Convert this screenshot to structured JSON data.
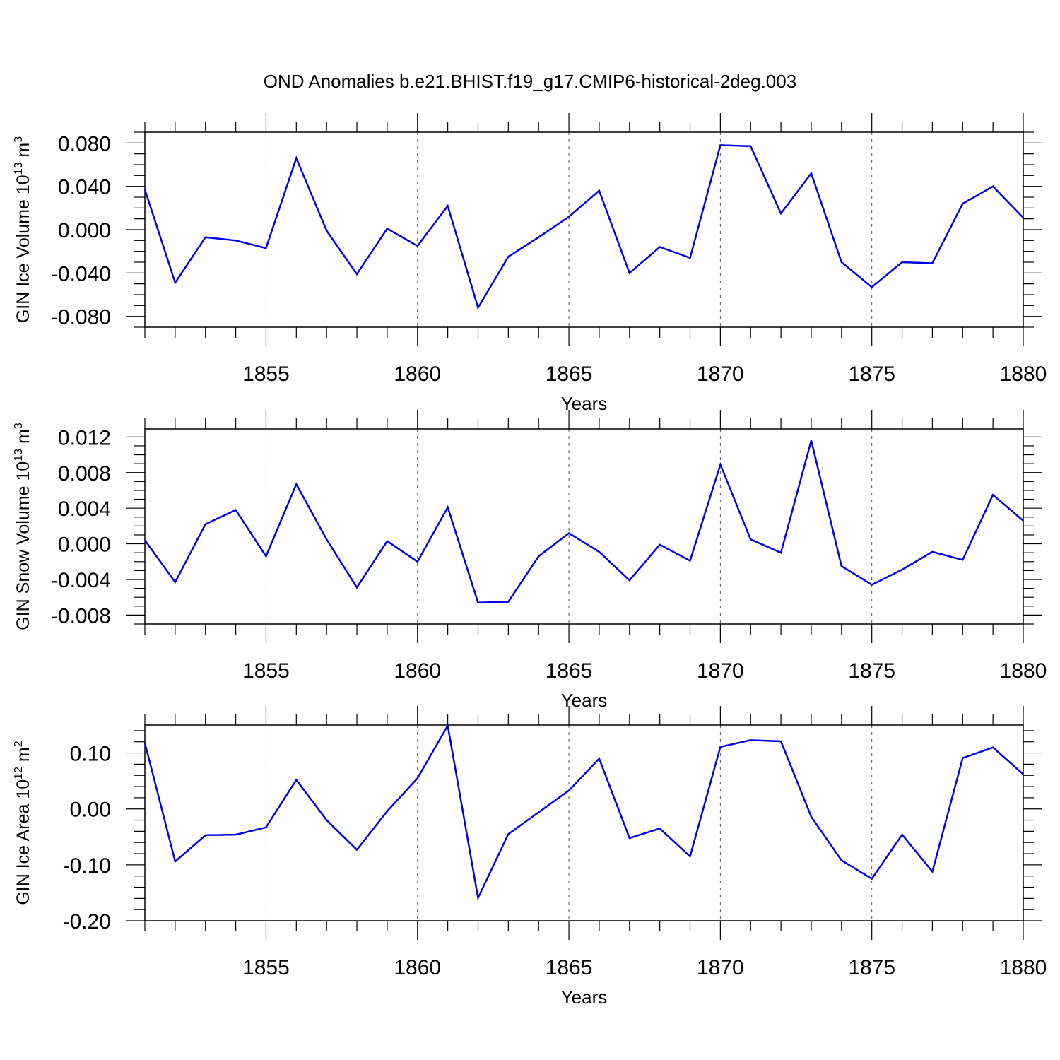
{
  "figure": {
    "title": "OND Anomalies b.e21.BHIST.f19_g17.CMIP6-historical-2deg.003"
  },
  "chart_data": [
    {
      "type": "line",
      "title": "",
      "xlabel": "Years",
      "ylabel": {
        "main": "GIN Ice Volume 10",
        "exp": "13",
        "unit": " m",
        "unit_exp": "3"
      },
      "xlim": [
        1851,
        1880
      ],
      "ylim": [
        -0.09,
        0.09
      ],
      "xticks": [
        1855,
        1860,
        1865,
        1870,
        1875,
        1880
      ],
      "xtick_labels": [
        "1855",
        "1860",
        "1865",
        "1870",
        "1875",
        "1880"
      ],
      "yticks": [
        -0.08,
        -0.04,
        0.0,
        0.04,
        0.08
      ],
      "ytick_labels": [
        "-0.080",
        "-0.040",
        "0.000",
        "0.040",
        "0.080"
      ],
      "ygrid_minor": 0.01,
      "vgrid": [
        1855,
        1860,
        1865,
        1870,
        1875
      ],
      "line_color": "#0000ee",
      "x": [
        1851,
        1852,
        1853,
        1854,
        1855,
        1856,
        1857,
        1858,
        1859,
        1860,
        1861,
        1862,
        1863,
        1864,
        1865,
        1866,
        1867,
        1868,
        1869,
        1870,
        1871,
        1872,
        1873,
        1874,
        1875,
        1876,
        1877,
        1878,
        1879,
        1880
      ],
      "values": [
        0.037,
        -0.049,
        -0.007,
        -0.01,
        -0.017,
        0.066,
        -0.001,
        -0.041,
        0.001,
        -0.015,
        0.022,
        -0.072,
        -0.025,
        -0.007,
        0.012,
        0.036,
        -0.04,
        -0.016,
        -0.026,
        0.078,
        0.077,
        0.015,
        0.052,
        -0.03,
        -0.053,
        -0.03,
        -0.031,
        0.024,
        0.04,
        0.011
      ]
    },
    {
      "type": "line",
      "title": "",
      "xlabel": "Years",
      "ylabel": {
        "main": "GIN Snow Volume 10",
        "exp": "13",
        "unit": " m",
        "unit_exp": "3"
      },
      "xlim": [
        1851,
        1880
      ],
      "ylim": [
        -0.009,
        0.0129
      ],
      "xticks": [
        1855,
        1860,
        1865,
        1870,
        1875,
        1880
      ],
      "xtick_labels": [
        "1855",
        "1860",
        "1865",
        "1870",
        "1875",
        "1880"
      ],
      "yticks": [
        -0.008,
        -0.004,
        0.0,
        0.004,
        0.008,
        0.012
      ],
      "ytick_labels": [
        "-0.008",
        "-0.004",
        "0.000",
        "0.004",
        "0.008",
        "0.012"
      ],
      "ygrid_minor": 0.001,
      "vgrid": [
        1855,
        1860,
        1865,
        1870,
        1875
      ],
      "line_color": "#0000ee",
      "x": [
        1851,
        1852,
        1853,
        1854,
        1855,
        1856,
        1857,
        1858,
        1859,
        1860,
        1861,
        1862,
        1863,
        1864,
        1865,
        1866,
        1867,
        1868,
        1869,
        1870,
        1871,
        1872,
        1873,
        1874,
        1875,
        1876,
        1877,
        1878,
        1879,
        1880
      ],
      "values": [
        0.0004,
        -0.0043,
        0.0022,
        0.0038,
        -0.0014,
        0.0067,
        0.0005,
        -0.0049,
        0.0003,
        -0.002,
        0.0041,
        -0.0066,
        -0.0065,
        -0.0014,
        0.0012,
        -0.0009,
        -0.0041,
        -0.0001,
        -0.0019,
        0.0089,
        0.0005,
        -0.001,
        0.0116,
        -0.0025,
        -0.0046,
        -0.0029,
        -0.0009,
        -0.0018,
        0.0055,
        0.0026
      ]
    },
    {
      "type": "line",
      "title": "",
      "xlabel": "Years",
      "ylabel": {
        "main": "GIN Ice Area 10",
        "exp": "12",
        "unit": " m",
        "unit_exp": "2"
      },
      "xlim": [
        1851,
        1880
      ],
      "ylim": [
        -0.2,
        0.15
      ],
      "xticks": [
        1855,
        1860,
        1865,
        1870,
        1875,
        1880
      ],
      "xtick_labels": [
        "1855",
        "1860",
        "1865",
        "1870",
        "1875",
        "1880"
      ],
      "yticks": [
        -0.2,
        -0.1,
        0.0,
        0.1
      ],
      "ytick_labels": [
        "-0.20",
        "-0.10",
        "0.00",
        "0.10"
      ],
      "ygrid_minor": 0.02,
      "vgrid": [
        1855,
        1860,
        1865,
        1870,
        1875
      ],
      "line_color": "#0000ee",
      "x": [
        1851,
        1852,
        1853,
        1854,
        1855,
        1856,
        1857,
        1858,
        1859,
        1860,
        1861,
        1862,
        1863,
        1864,
        1865,
        1866,
        1867,
        1868,
        1869,
        1870,
        1871,
        1872,
        1873,
        1874,
        1875,
        1876,
        1877,
        1878,
        1879,
        1880
      ],
      "values": [
        0.118,
        -0.094,
        -0.047,
        -0.046,
        -0.033,
        0.052,
        -0.02,
        -0.073,
        -0.004,
        0.055,
        0.149,
        -0.159,
        -0.045,
        -0.006,
        0.033,
        0.09,
        -0.052,
        -0.035,
        -0.085,
        0.111,
        0.123,
        0.121,
        -0.014,
        -0.092,
        -0.125,
        -0.046,
        -0.112,
        0.091,
        0.11,
        0.062
      ]
    }
  ]
}
